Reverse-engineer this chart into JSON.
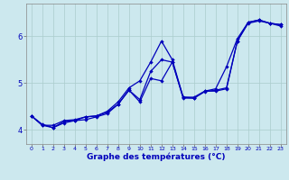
{
  "xlabel": "Graphe des températures (°C)",
  "background_color": "#cce8ee",
  "grid_color": "#aacccc",
  "line_color": "#0000bb",
  "xlim": [
    -0.5,
    23.5
  ],
  "ylim": [
    3.7,
    6.7
  ],
  "xticks": [
    0,
    1,
    2,
    3,
    4,
    5,
    6,
    7,
    8,
    9,
    10,
    11,
    12,
    13,
    14,
    15,
    16,
    17,
    18,
    19,
    20,
    21,
    22,
    23
  ],
  "yticks": [
    4,
    5,
    6
  ],
  "line1_x": [
    0,
    1,
    2,
    3,
    4,
    5,
    6,
    7,
    8,
    9,
    10,
    11,
    12,
    13,
    14,
    15,
    16,
    17,
    18,
    19,
    20,
    21,
    22,
    23
  ],
  "line1_y": [
    4.3,
    4.1,
    4.05,
    4.15,
    4.2,
    4.22,
    4.28,
    4.35,
    4.55,
    4.85,
    4.6,
    5.1,
    5.05,
    5.45,
    4.7,
    4.68,
    4.82,
    4.85,
    4.9,
    5.9,
    6.3,
    6.35,
    6.28,
    6.25
  ],
  "line2_x": [
    0,
    1,
    2,
    3,
    4,
    5,
    6,
    7,
    8,
    9,
    10,
    11,
    12,
    13,
    14,
    15,
    16,
    17,
    18,
    19,
    20,
    21,
    22,
    23
  ],
  "line2_y": [
    4.3,
    4.1,
    4.1,
    4.2,
    4.22,
    4.28,
    4.3,
    4.4,
    4.6,
    4.9,
    5.05,
    5.45,
    5.9,
    5.5,
    4.7,
    4.7,
    4.83,
    4.88,
    5.35,
    5.95,
    6.3,
    6.35,
    6.28,
    6.25
  ],
  "line3_x": [
    0,
    1,
    2,
    3,
    4,
    5,
    6,
    7,
    8,
    9,
    10,
    11,
    12,
    13,
    14,
    15,
    16,
    17,
    18,
    19,
    20,
    21,
    22,
    23
  ],
  "line3_y": [
    4.3,
    4.12,
    4.05,
    4.18,
    4.2,
    4.28,
    4.3,
    4.38,
    4.55,
    4.85,
    4.65,
    5.25,
    5.5,
    5.45,
    4.68,
    4.68,
    4.83,
    4.83,
    4.88,
    5.9,
    6.28,
    6.33,
    6.28,
    6.22
  ]
}
